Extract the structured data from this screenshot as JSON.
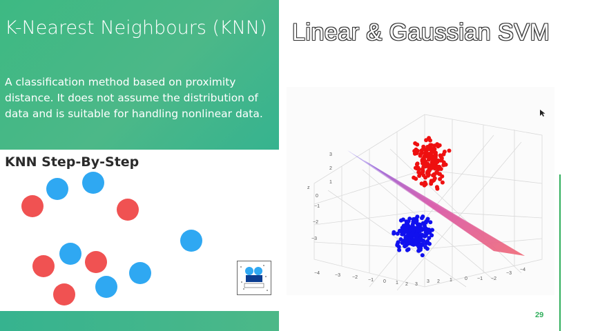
{
  "left_panel": {
    "title": "K-Nearest Neighbours (KNN)",
    "description": "A classification method based on proximity distance. It does not assume the distribution of data and is suitable for handling nonlinear data.",
    "step_title": "KNN Step-By-Step",
    "logo_icon": "knn-animation-logo"
  },
  "right_panel": {
    "title": "Linear & Gaussian SVM",
    "plot_image": "3d-svm-hyperplane-plot"
  },
  "page_number": "29",
  "colors": {
    "green_accent": "#2fae5b",
    "panel_green": "#3db983",
    "knn_blue": "#2fa8f2",
    "knn_red": "#f05252",
    "svm_blue": "#1010ee",
    "svm_red": "#ee1010"
  }
}
